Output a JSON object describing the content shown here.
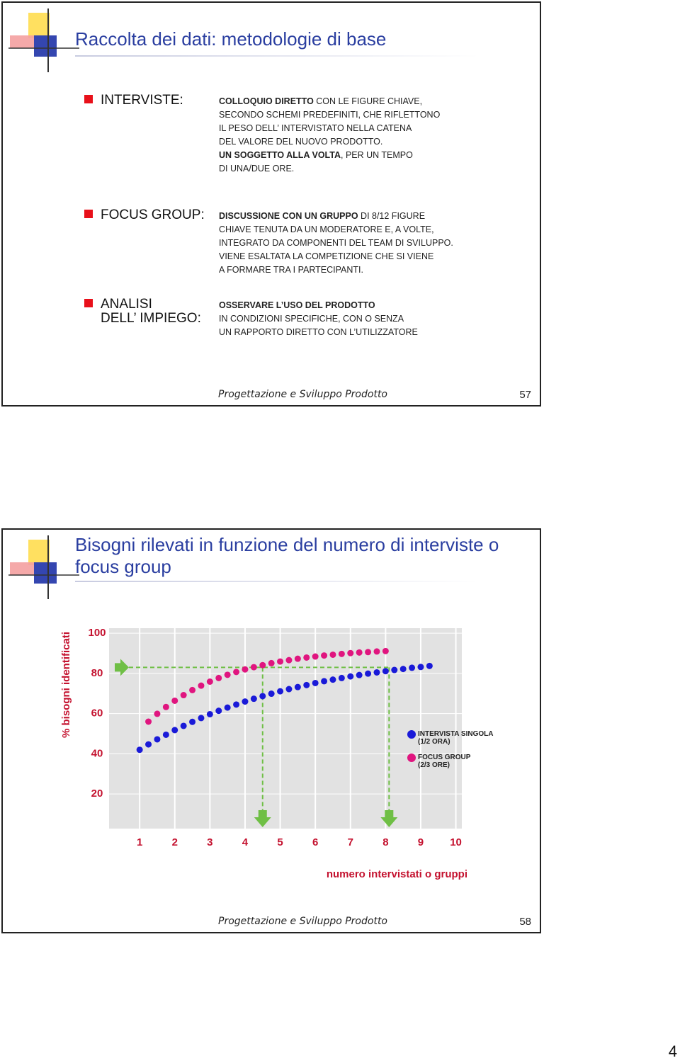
{
  "slides": [
    {
      "title": "Raccolta dei dati: metodologie di base",
      "items": [
        {
          "label": [
            "INTERVISTE:"
          ],
          "lines": [
            {
              "bold": "COLLOQUIO DIRETTO",
              "text": " CON LE FIGURE CHIAVE,"
            },
            {
              "text": "SECONDO SCHEMI PREDEFINITI, CHE RIFLETTONO"
            },
            {
              "text": "IL PESO DELL’ INTERVISTATO NELLA CATENA"
            },
            {
              "text": "DEL VALORE DEL NUOVO PRODOTTO."
            },
            {
              "bold": "UN SOGGETTO ALLA VOLTA",
              "text": ", PER UN TEMPO"
            },
            {
              "text": "DI UNA/DUE ORE."
            }
          ]
        },
        {
          "label": [
            "FOCUS GROUP:"
          ],
          "lines": [
            {
              "bold": "DISCUSSIONE CON UN GRUPPO",
              "text": " DI 8/12 FIGURE"
            },
            {
              "text": "CHIAVE TENUTA DA UN MODERATORE E, A VOLTE,"
            },
            {
              "text": "INTEGRATO DA COMPONENTI DEL TEAM DI SVILUPPO."
            },
            {
              "text": "VIENE ESALTATA LA COMPETIZIONE CHE SI VIENE"
            },
            {
              "text": "A FORMARE TRA I PARTECIPANTI."
            }
          ]
        },
        {
          "label": [
            "ANALISI",
            "DELL’ IMPIEGO:"
          ],
          "lines": [
            {
              "bold": "OSSERVARE L’USO DEL PRODOTTO"
            },
            {
              "text": "IN CONDIZIONI SPECIFICHE, CON O SENZA"
            },
            {
              "text": "UN RAPPORTO DIRETTO CON L’UTILIZZATORE"
            }
          ]
        }
      ],
      "footer": "Progettazione e Sviluppo Prodotto",
      "number": "57"
    },
    {
      "title": "Bisogni rilevati in funzione del numero di interviste o focus group",
      "footer": "Progettazione e Sviluppo Prodotto",
      "number": "58"
    }
  ],
  "chart_data": {
    "type": "scatter",
    "xlabel": "numero intervistati o gruppi",
    "ylabel": "% bisogni identificati",
    "xlim": [
      0.13,
      10.17
    ],
    "ylim": [
      2.8,
      102.5
    ],
    "xticks": [
      1,
      2,
      3,
      4,
      5,
      6,
      7,
      8,
      9,
      10
    ],
    "yticks": [
      20,
      40,
      60,
      80,
      100
    ],
    "grid": true,
    "legend": "right",
    "reference_y": 83,
    "reference_x": [
      4.5,
      8.1
    ],
    "series": [
      {
        "name": "INTERVISTA SINGOLA\n(1/2 ORA)",
        "color": "#1a1ad8",
        "x": [
          1,
          1.25,
          1.5,
          1.75,
          2,
          2.25,
          2.5,
          2.75,
          3,
          3.25,
          3.5,
          3.75,
          4,
          4.25,
          4.5,
          4.75,
          5,
          5.25,
          5.5,
          5.75,
          6,
          6.25,
          6.5,
          6.75,
          7,
          7.25,
          7.5,
          7.75,
          8,
          8.25,
          8.5,
          8.75,
          9,
          9.25
        ],
        "values": [
          42.0,
          44.7,
          47.2,
          49.5,
          51.8,
          53.9,
          55.9,
          57.8,
          59.7,
          61.4,
          63.0,
          64.5,
          66.0,
          67.4,
          68.7,
          69.9,
          71.1,
          72.2,
          73.2,
          74.2,
          75.2,
          76.1,
          76.9,
          77.7,
          78.5,
          79.2,
          79.9,
          80.5,
          81.1,
          81.7,
          82.2,
          82.8,
          83.2,
          83.7
        ]
      },
      {
        "name": "FOCUS GROUP\n(2/3 ORE)",
        "color": "#e0157f",
        "x": [
          1.25,
          1.5,
          1.75,
          2,
          2.25,
          2.5,
          2.75,
          3,
          3.25,
          3.5,
          3.75,
          4,
          4.25,
          4.5,
          4.75,
          5,
          5.25,
          5.5,
          5.75,
          6,
          6.25,
          6.5,
          6.75,
          7,
          7.25,
          7.5,
          7.75,
          8
        ],
        "values": [
          56.0,
          59.9,
          63.3,
          66.4,
          69.2,
          71.7,
          73.9,
          75.9,
          77.7,
          79.3,
          80.7,
          82.0,
          83.1,
          84.1,
          85.1,
          85.9,
          86.6,
          87.3,
          87.9,
          88.4,
          88.9,
          89.3,
          89.7,
          90.1,
          90.4,
          90.6,
          90.9,
          91.1
        ]
      }
    ]
  },
  "page_number": "4"
}
